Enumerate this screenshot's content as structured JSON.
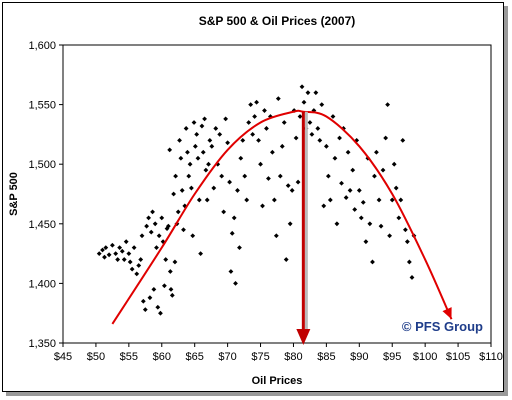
{
  "chart_data": {
    "type": "scatter",
    "title": "S&P 500 & Oil Prices (2007)",
    "xlabel": "Oil Prices",
    "ylabel": "S&P 500",
    "xlim": [
      45,
      110
    ],
    "ylim": [
      1350,
      1600
    ],
    "x_ticks": [
      45,
      50,
      55,
      60,
      65,
      70,
      75,
      80,
      85,
      90,
      95,
      100,
      105,
      110
    ],
    "x_tick_labels": [
      "$45",
      "$50",
      "$55",
      "$60",
      "$65",
      "$70",
      "$75",
      "$80",
      "$85",
      "$90",
      "$95",
      "$100",
      "$105",
      "$110"
    ],
    "y_ticks": [
      1350,
      1400,
      1450,
      1500,
      1550,
      1600
    ],
    "y_tick_labels": [
      "1,350",
      "1,400",
      "1,450",
      "1,500",
      "1,550",
      "1,600"
    ],
    "grid": false,
    "marker": "diamond",
    "marker_color": "#000000",
    "trend_color": "#e00000",
    "peak_x": 81.5,
    "trend_curve": [
      [
        52.5,
        1366
      ],
      [
        60,
        1430
      ],
      [
        65,
        1475
      ],
      [
        70,
        1512
      ],
      [
        75,
        1535
      ],
      [
        80,
        1544
      ],
      [
        81.5,
        1544
      ],
      [
        85,
        1540
      ],
      [
        90,
        1515
      ],
      [
        95,
        1475
      ],
      [
        100,
        1420
      ],
      [
        104,
        1370
      ]
    ],
    "watermark": "© PFS Group",
    "points": [
      [
        50.5,
        1425
      ],
      [
        51,
        1428
      ],
      [
        51.3,
        1422
      ],
      [
        51.5,
        1430
      ],
      [
        52,
        1424
      ],
      [
        52.5,
        1432
      ],
      [
        53,
        1425
      ],
      [
        53.3,
        1420
      ],
      [
        53.6,
        1430
      ],
      [
        54,
        1427
      ],
      [
        54.3,
        1420
      ],
      [
        54.6,
        1435
      ],
      [
        55,
        1425
      ],
      [
        55.2,
        1418
      ],
      [
        55.5,
        1412
      ],
      [
        55.8,
        1430
      ],
      [
        56.2,
        1408
      ],
      [
        56.5,
        1415
      ],
      [
        56.8,
        1420
      ],
      [
        57,
        1440
      ],
      [
        57.2,
        1385
      ],
      [
        57.5,
        1378
      ],
      [
        57.7,
        1448
      ],
      [
        58,
        1455
      ],
      [
        58.2,
        1388
      ],
      [
        58.4,
        1443
      ],
      [
        58.6,
        1460
      ],
      [
        58.8,
        1395
      ],
      [
        59,
        1450
      ],
      [
        59.2,
        1430
      ],
      [
        59.4,
        1380
      ],
      [
        59.6,
        1440
      ],
      [
        59.8,
        1375
      ],
      [
        60,
        1455
      ],
      [
        60.2,
        1435
      ],
      [
        60.4,
        1398
      ],
      [
        60.6,
        1420
      ],
      [
        60.8,
        1446
      ],
      [
        61,
        1448
      ],
      [
        61.2,
        1512
      ],
      [
        61.3,
        1410
      ],
      [
        61.4,
        1395
      ],
      [
        61.6,
        1390
      ],
      [
        61.8,
        1475
      ],
      [
        62,
        1418
      ],
      [
        62.1,
        1490
      ],
      [
        62.3,
        1450
      ],
      [
        62.5,
        1460
      ],
      [
        62.7,
        1520
      ],
      [
        62.9,
        1505
      ],
      [
        63.1,
        1478
      ],
      [
        63.3,
        1445
      ],
      [
        63.5,
        1465
      ],
      [
        63.7,
        1530
      ],
      [
        63.9,
        1510
      ],
      [
        64.1,
        1490
      ],
      [
        64.3,
        1500
      ],
      [
        64.5,
        1480
      ],
      [
        64.7,
        1440
      ],
      [
        64.9,
        1535
      ],
      [
        65.1,
        1515
      ],
      [
        65.3,
        1525
      ],
      [
        65.5,
        1505
      ],
      [
        65.7,
        1470
      ],
      [
        65.9,
        1425
      ],
      [
        66.1,
        1532
      ],
      [
        66.3,
        1510
      ],
      [
        66.5,
        1538
      ],
      [
        66.7,
        1495
      ],
      [
        66.9,
        1470
      ],
      [
        67.1,
        1500
      ],
      [
        67.3,
        1520
      ],
      [
        67.6,
        1515
      ],
      [
        67.9,
        1480
      ],
      [
        68.2,
        1530
      ],
      [
        68.5,
        1500
      ],
      [
        68.8,
        1525
      ],
      [
        69.1,
        1490
      ],
      [
        69.4,
        1460
      ],
      [
        69.7,
        1538
      ],
      [
        70,
        1518
      ],
      [
        70.3,
        1485
      ],
      [
        70.5,
        1410
      ],
      [
        70.7,
        1442
      ],
      [
        71,
        1455
      ],
      [
        71.2,
        1400
      ],
      [
        71.5,
        1478
      ],
      [
        71.8,
        1430
      ],
      [
        72,
        1505
      ],
      [
        72.3,
        1520
      ],
      [
        72.6,
        1490
      ],
      [
        72.9,
        1470
      ],
      [
        73.2,
        1535
      ],
      [
        73.5,
        1550
      ],
      [
        73.8,
        1525
      ],
      [
        74.1,
        1540
      ],
      [
        74.4,
        1552
      ],
      [
        74.7,
        1520
      ],
      [
        75,
        1500
      ],
      [
        75.3,
        1465
      ],
      [
        75.6,
        1545
      ],
      [
        75.9,
        1530
      ],
      [
        76.2,
        1488
      ],
      [
        76.5,
        1540
      ],
      [
        76.8,
        1510
      ],
      [
        77.1,
        1470
      ],
      [
        77.4,
        1440
      ],
      [
        77.7,
        1555
      ],
      [
        78,
        1490
      ],
      [
        78.3,
        1515
      ],
      [
        78.6,
        1535
      ],
      [
        78.9,
        1420
      ],
      [
        79.2,
        1482
      ],
      [
        79.5,
        1450
      ],
      [
        79.8,
        1478
      ],
      [
        80.1,
        1545
      ],
      [
        80.4,
        1522
      ],
      [
        80.7,
        1485
      ],
      [
        81,
        1540
      ],
      [
        81.3,
        1565
      ],
      [
        81.6,
        1552
      ],
      [
        81.9,
        1530
      ],
      [
        82.2,
        1560
      ],
      [
        82.5,
        1535
      ],
      [
        82.8,
        1525
      ],
      [
        83.1,
        1545
      ],
      [
        83.4,
        1560
      ],
      [
        83.7,
        1530
      ],
      [
        84,
        1520
      ],
      [
        84.3,
        1550
      ],
      [
        84.6,
        1465
      ],
      [
        85,
        1515
      ],
      [
        85.3,
        1490
      ],
      [
        85.6,
        1470
      ],
      [
        86,
        1540
      ],
      [
        86.3,
        1505
      ],
      [
        86.6,
        1450
      ],
      [
        87,
        1522
      ],
      [
        87.3,
        1484
      ],
      [
        87.6,
        1530
      ],
      [
        88,
        1472
      ],
      [
        88.3,
        1510
      ],
      [
        88.6,
        1478
      ],
      [
        89,
        1495
      ],
      [
        89.3,
        1462
      ],
      [
        89.6,
        1520
      ],
      [
        90,
        1478
      ],
      [
        90.3,
        1455
      ],
      [
        90.6,
        1468
      ],
      [
        91,
        1435
      ],
      [
        91.3,
        1505
      ],
      [
        91.6,
        1450
      ],
      [
        92,
        1418
      ],
      [
        92.3,
        1490
      ],
      [
        92.6,
        1510
      ],
      [
        93,
        1470
      ],
      [
        93.3,
        1448
      ],
      [
        93.6,
        1495
      ],
      [
        94,
        1522
      ],
      [
        94.3,
        1550
      ],
      [
        94.6,
        1440
      ],
      [
        95,
        1470
      ],
      [
        95.3,
        1500
      ],
      [
        95.6,
        1480
      ],
      [
        96,
        1455
      ],
      [
        96.3,
        1470
      ],
      [
        96.6,
        1520
      ],
      [
        97,
        1445
      ],
      [
        97.3,
        1435
      ],
      [
        97.6,
        1418
      ],
      [
        98,
        1405
      ],
      [
        98.3,
        1440
      ]
    ]
  }
}
